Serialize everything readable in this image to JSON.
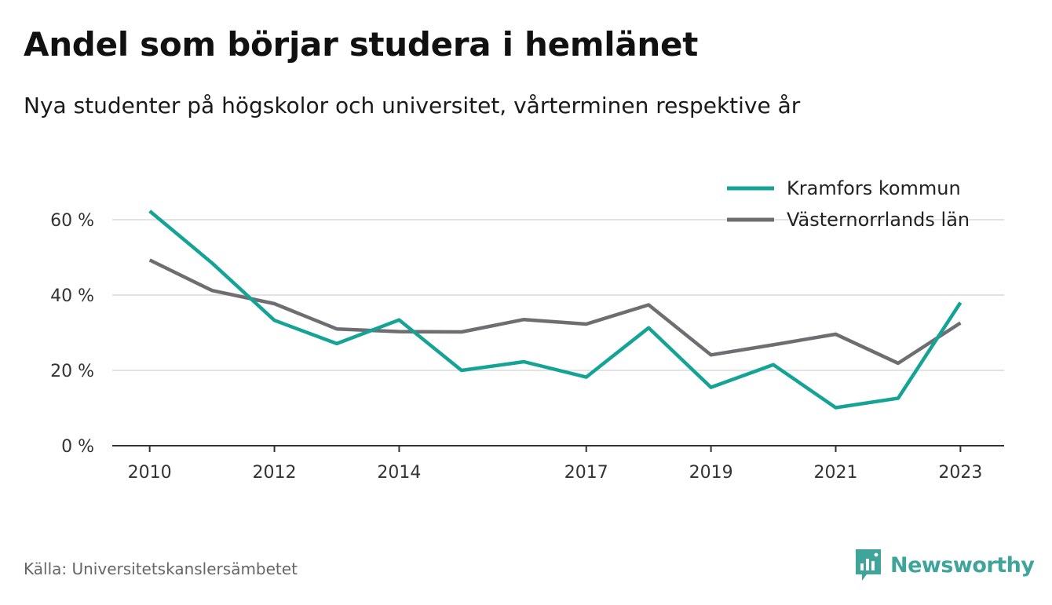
{
  "title": "Andel som börjar studera i hemlänet",
  "subtitle": "Nya studenter på högskolor och universitet, vårterminen respektive år",
  "source": "Källa: Universitetskanslersämbetet",
  "brand": {
    "name": "Newsworthy",
    "icon": "newsworthy-logo-icon",
    "color": "#3fa49a"
  },
  "chart_data": {
    "type": "line",
    "x": [
      2010,
      2011,
      2012,
      2013,
      2014,
      2015,
      2016,
      2017,
      2018,
      2019,
      2020,
      2021,
      2022,
      2023
    ],
    "x_tick_labels": [
      "2010",
      "2012",
      "2014",
      "2017",
      "2019",
      "2021",
      "2023"
    ],
    "y_tick_labels": [
      "0 %",
      "20 %",
      "40 %",
      "60 %"
    ],
    "ylim": [
      0,
      70
    ],
    "xlim": [
      2009.4,
      2023.7
    ],
    "grid": true,
    "legend_position": "top-right",
    "series": [
      {
        "name": "Kramfors kommun",
        "color": "#15a396",
        "values": [
          62.3,
          48.5,
          33.3,
          27.1,
          33.4,
          20.0,
          22.3,
          18.2,
          31.3,
          15.5,
          21.5,
          10.1,
          12.6,
          38.0
        ]
      },
      {
        "name": "Västernorrlands län",
        "color": "#6e6d72",
        "values": [
          49.3,
          41.2,
          37.7,
          31.0,
          30.3,
          30.2,
          33.5,
          32.3,
          37.4,
          24.1,
          26.8,
          29.6,
          21.9,
          32.6
        ]
      }
    ]
  }
}
